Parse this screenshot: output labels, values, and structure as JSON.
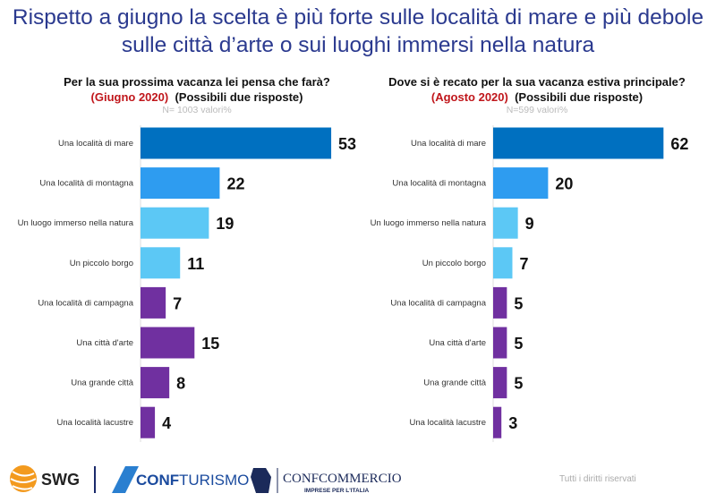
{
  "title": "Rispetto a giugno la scelta è più forte sulle località di mare e più debole sulle città d’arte o sui luoghi immersi nella natura",
  "chart_data": [
    {
      "type": "bar",
      "orientation": "horizontal",
      "title": "Per la sua prossima vacanza lei pensa che farà?",
      "period": "(Giugno 2020)",
      "note": "(Possibili due risposte)",
      "sample": "N= 1003 valori%",
      "categories": [
        "Una località di mare",
        "Una località di montagna",
        "Un luogo immerso nella natura",
        "Un piccolo borgo",
        "Una località di campagna",
        "Una città d'arte",
        "Una grande città",
        "Una località lacustre"
      ],
      "values": [
        53,
        22,
        19,
        11,
        7,
        15,
        8,
        4
      ]
    },
    {
      "type": "bar",
      "orientation": "horizontal",
      "title": "Dove si è recato per la sua vacanza estiva principale?",
      "period": "(Agosto 2020)",
      "note": "(Possibili due risposte)",
      "sample": "N=599 valori%",
      "categories": [
        "Una località di mare",
        "Una località di montagna",
        "Un luogo immerso nella natura",
        "Un piccolo borgo",
        "Una località di campagna",
        "Una città d'arte",
        "Una grande città",
        "Una località lacustre"
      ],
      "values": [
        62,
        20,
        9,
        7,
        5,
        5,
        5,
        3
      ]
    }
  ],
  "colors": [
    "#0070c0",
    "#2e9cf0",
    "#5cc8f5",
    "#5cc8f5",
    "#7030a0",
    "#7030a0",
    "#7030a0",
    "#7030a0"
  ],
  "footer": {
    "logos": [
      "SWG",
      "CONFTURISMO",
      "CONFCOMMERCIO",
      "IMPRESE PER L'ITALIA"
    ],
    "rights": "Tutti i diritti riservati"
  }
}
